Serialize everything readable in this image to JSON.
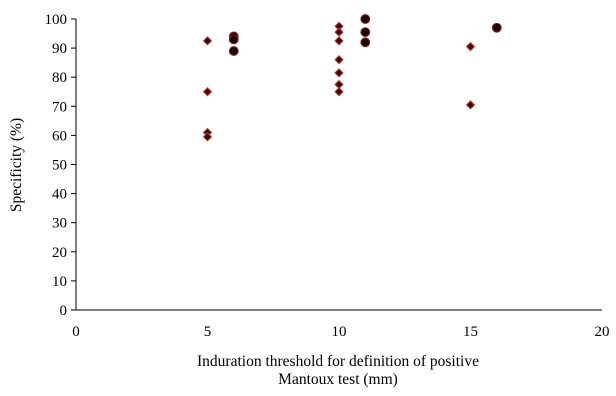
{
  "chart_data": {
    "type": "scatter",
    "xlabel": [
      "Induration threshold for definition of positive",
      "Mantoux test (mm)"
    ],
    "ylabel": "Specificity (%)",
    "xlim": [
      0,
      20
    ],
    "ylim": [
      0,
      100
    ],
    "x_ticks": [
      0,
      5,
      10,
      15,
      20
    ],
    "y_ticks": [
      0,
      10,
      20,
      30,
      40,
      50,
      60,
      70,
      80,
      90,
      100
    ],
    "grid": false,
    "legend": "none",
    "series": [
      {
        "marker": "diamond",
        "color": "#3a0a0a",
        "edge_color": "#c0392b",
        "points": [
          {
            "x": 5,
            "y": 92.5
          },
          {
            "x": 5,
            "y": 75
          },
          {
            "x": 5,
            "y": 61
          },
          {
            "x": 5,
            "y": 59.5
          },
          {
            "x": 10,
            "y": 97.5
          },
          {
            "x": 10,
            "y": 95.5
          },
          {
            "x": 10,
            "y": 92.5
          },
          {
            "x": 10,
            "y": 86
          },
          {
            "x": 10,
            "y": 81.5
          },
          {
            "x": 10,
            "y": 77.5
          },
          {
            "x": 10,
            "y": 75
          },
          {
            "x": 15,
            "y": 90.5
          },
          {
            "x": 15,
            "y": 70.5
          }
        ]
      },
      {
        "marker": "circle",
        "color": "#1a0000",
        "edge_color": "#7b1a1a",
        "points": [
          {
            "x": 6,
            "y": 94
          },
          {
            "x": 6,
            "y": 93
          },
          {
            "x": 6,
            "y": 89
          },
          {
            "x": 11,
            "y": 100
          },
          {
            "x": 11,
            "y": 95.5
          },
          {
            "x": 11,
            "y": 92
          },
          {
            "x": 16,
            "y": 97
          }
        ]
      }
    ]
  }
}
